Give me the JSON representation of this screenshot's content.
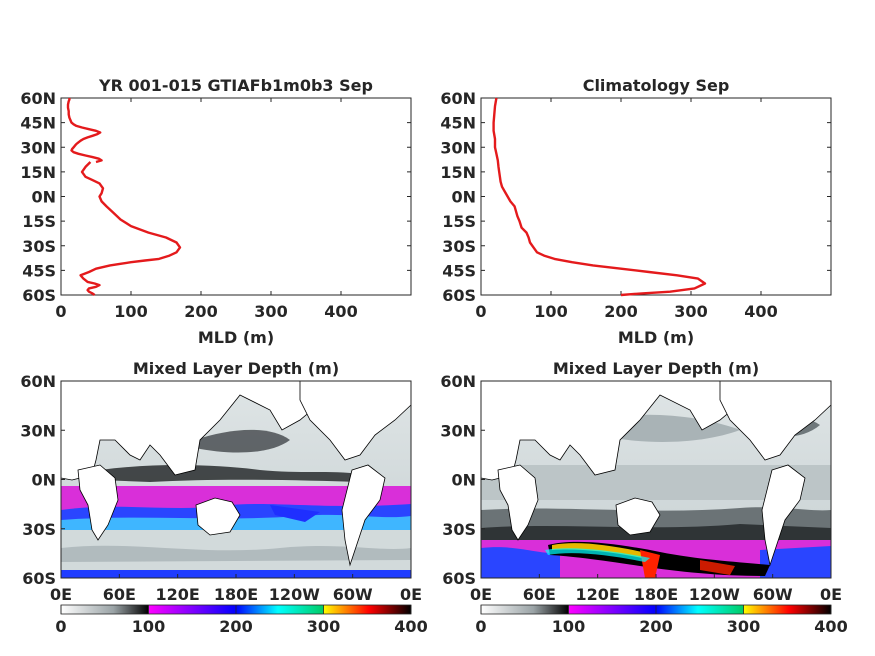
{
  "chart_data": [
    {
      "type": "line",
      "title": "YR 001-015 GTIAFb1m0b3 Sep",
      "xlabel": "MLD (m)",
      "ylabel": "",
      "xlim": [
        0,
        500
      ],
      "ylim": [
        -60,
        60
      ],
      "xticks": [
        "0",
        "100",
        "200",
        "300",
        "400"
      ],
      "yticks": [
        "60N",
        "45N",
        "30N",
        "15N",
        "0N",
        "15S",
        "30S",
        "45S",
        "60S"
      ],
      "line_color": "#e41a1c",
      "series": [
        {
          "x": [
            48,
            45,
            40,
            38,
            40,
            50,
            55,
            48,
            38,
            32,
            28,
            40,
            50,
            60,
            70,
            85,
            100,
            120,
            140,
            155,
            165,
            170,
            165,
            150,
            125,
            100,
            85,
            75,
            65,
            58,
            55,
            58,
            60,
            55,
            45,
            35,
            30,
            35,
            42
          ],
          "y": [
            -60,
            -59,
            -58,
            -57,
            -56,
            -55,
            -54,
            -53,
            -52,
            -50,
            -48,
            -46,
            -44,
            -43,
            -42,
            -41,
            -40,
            -39,
            -38,
            -36,
            -34,
            -31,
            -28,
            -25,
            -22,
            -18,
            -14,
            -10,
            -6,
            -3,
            0,
            2,
            5,
            8,
            10,
            12,
            15,
            18,
            21
          ]
        },
        {
          "x": [
            50,
            58,
            54,
            45,
            35,
            25,
            18,
            15,
            16,
            18,
            20,
            22,
            25,
            28,
            32,
            38,
            45,
            52,
            56,
            50,
            40,
            30,
            22,
            18,
            15,
            14,
            13,
            12,
            11,
            11,
            10,
            10,
            11,
            12,
            12
          ],
          "y": [
            21,
            22,
            23,
            24,
            25,
            26,
            27,
            28,
            29,
            30,
            31,
            32,
            33,
            34,
            35,
            36,
            37,
            38,
            39,
            40,
            41,
            42,
            43,
            44,
            45,
            46,
            47,
            48,
            50,
            52,
            54,
            56,
            58,
            59,
            60
          ]
        }
      ]
    },
    {
      "type": "line",
      "title": "Climatology Sep",
      "xlabel": "MLD (m)",
      "ylabel": "",
      "xlim": [
        0,
        500
      ],
      "ylim": [
        -60,
        60
      ],
      "xticks": [
        "0",
        "100",
        "200",
        "300",
        "400"
      ],
      "yticks": [
        "60N",
        "45N",
        "30N",
        "15N",
        "0N",
        "15S",
        "30S",
        "45S",
        "60S"
      ],
      "line_color": "#e41a1c",
      "series": [
        {
          "x": [
            200,
            230,
            270,
            305,
            320,
            310,
            280,
            240,
            200,
            160,
            130,
            105,
            90,
            80,
            75,
            70,
            68,
            65,
            58,
            55,
            52,
            50,
            48,
            42,
            38,
            34,
            30,
            28,
            27,
            26,
            25,
            24,
            22,
            20,
            20,
            18,
            18,
            19,
            20,
            22
          ],
          "y": [
            -60,
            -59,
            -58,
            -56,
            -53,
            -50,
            -48,
            -46,
            -44,
            -42,
            -40,
            -38,
            -36,
            -34,
            -31,
            -28,
            -25,
            -22,
            -19,
            -15,
            -12,
            -9,
            -6,
            -3,
            0,
            3,
            6,
            9,
            12,
            15,
            18,
            22,
            26,
            30,
            35,
            40,
            45,
            50,
            55,
            60
          ]
        }
      ]
    },
    {
      "type": "heatmap",
      "title": "Mixed Layer Depth (m)",
      "xticks": [
        "0E",
        "60E",
        "120E",
        "180E",
        "120W",
        "60W",
        "0E"
      ],
      "yticks": [
        "60N",
        "30N",
        "0N",
        "30S",
        "60S"
      ],
      "colorbar_ticks": [
        "0",
        "100",
        "200",
        "300",
        "400"
      ],
      "colorbar_range": [
        0,
        400
      ],
      "colormap": [
        "#ffffff",
        "#9aa3a6",
        "#000000",
        "#ff00ff",
        "#0000ff",
        "#00ffff",
        "#ffff00",
        "#ff0000",
        "#000000"
      ]
    },
    {
      "type": "heatmap",
      "title": "Mixed Layer Depth (m)",
      "xticks": [
        "0E",
        "60E",
        "120E",
        "180E",
        "120W",
        "60W",
        "0E"
      ],
      "yticks": [
        "60N",
        "30N",
        "0N",
        "30S",
        "60S"
      ],
      "colorbar_ticks": [
        "0",
        "100",
        "200",
        "300",
        "400"
      ],
      "colorbar_range": [
        0,
        400
      ],
      "colormap": [
        "#ffffff",
        "#9aa3a6",
        "#000000",
        "#ff00ff",
        "#0000ff",
        "#00ffff",
        "#ffff00",
        "#ff0000",
        "#000000"
      ]
    }
  ]
}
